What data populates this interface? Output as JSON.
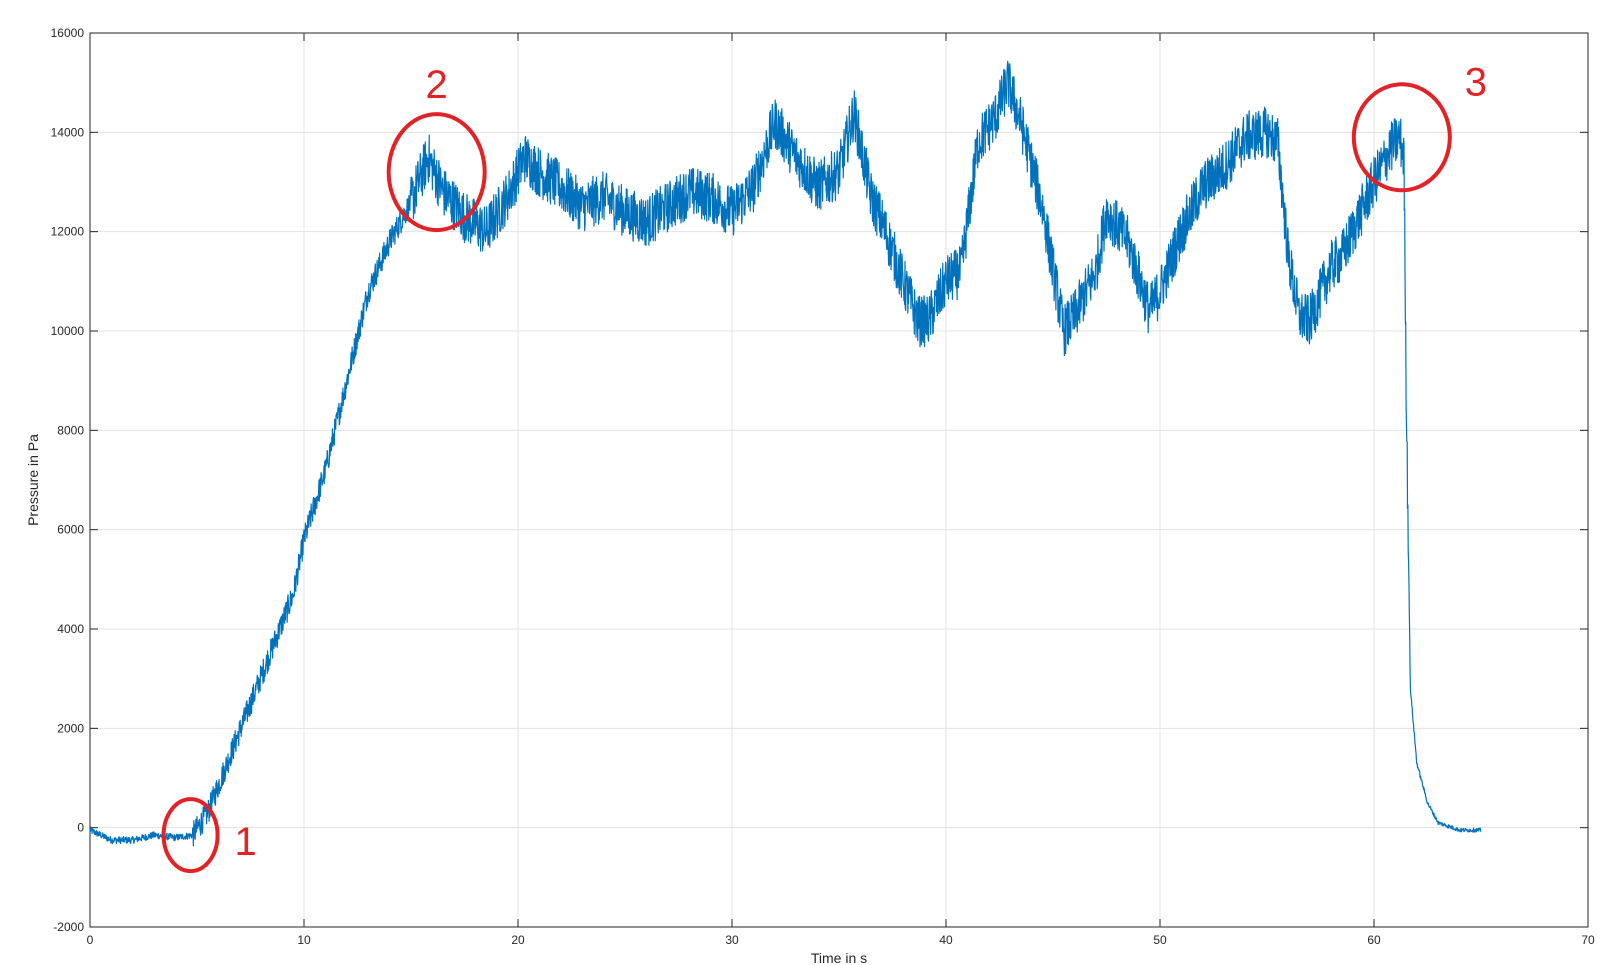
{
  "chart_data": {
    "type": "line",
    "title": "",
    "xlabel": "Time in s",
    "ylabel": "Pressure in Pa",
    "xlim": [
      0,
      70
    ],
    "ylim": [
      -2000,
      16000
    ],
    "x_ticks": [
      0,
      10,
      20,
      30,
      40,
      50,
      60,
      70
    ],
    "y_ticks": [
      -2000,
      0,
      2000,
      4000,
      6000,
      8000,
      10000,
      12000,
      14000,
      16000
    ],
    "grid": true,
    "line_color": "#0072bd",
    "series": [
      {
        "x": [
          0,
          1,
          2,
          3,
          4,
          4.8,
          5.5,
          6.5,
          7.5,
          8.5,
          9.5,
          10,
          11,
          12,
          13,
          14,
          15,
          15.8,
          16.5,
          17.5,
          18.5,
          19.5,
          20.3,
          21,
          22,
          23,
          24,
          25,
          26,
          27,
          28,
          29,
          30,
          31,
          32,
          33,
          34,
          35,
          35.7,
          36.5,
          37,
          38,
          38.7,
          39.2,
          40,
          40.7,
          41.5,
          42.3,
          42.9,
          43.5,
          44.5,
          45.5,
          46,
          47,
          47.5,
          48.5,
          49.5,
          50,
          51,
          52,
          53,
          54,
          55,
          55.5,
          56,
          56.5,
          57,
          58,
          58.5,
          59,
          60,
          60.8,
          61.2,
          61.4,
          61.5,
          61.7,
          62,
          62.5,
          63,
          64,
          65
        ],
        "values": [
          -50,
          -250,
          -250,
          -150,
          -200,
          -150,
          300,
          1400,
          2500,
          3600,
          4700,
          5800,
          7200,
          9000,
          10800,
          11800,
          12600,
          13500,
          12800,
          12300,
          12000,
          12700,
          13500,
          13200,
          12900,
          12500,
          12700,
          12400,
          12200,
          12500,
          12800,
          12700,
          12400,
          12900,
          14200,
          13500,
          12900,
          13200,
          14400,
          12700,
          12200,
          11000,
          10200,
          10200,
          11000,
          11200,
          13800,
          14300,
          15000,
          14200,
          12500,
          10000,
          10300,
          11200,
          12400,
          11800,
          10400,
          10800,
          12000,
          12900,
          13300,
          13900,
          14000,
          13800,
          11500,
          10300,
          10200,
          11300,
          11500,
          12000,
          13000,
          13700,
          13900,
          13500,
          9000,
          2800,
          1300,
          500,
          100,
          -50,
          -50
        ]
      }
    ],
    "annotations": [
      {
        "label": "1",
        "x": 4.7,
        "y": -150,
        "color": "#e32227"
      },
      {
        "label": "2",
        "x": 16.2,
        "y": 13200,
        "color": "#e32227"
      },
      {
        "label": "3",
        "x": 61.3,
        "y": 13900,
        "color": "#e32227"
      }
    ]
  }
}
